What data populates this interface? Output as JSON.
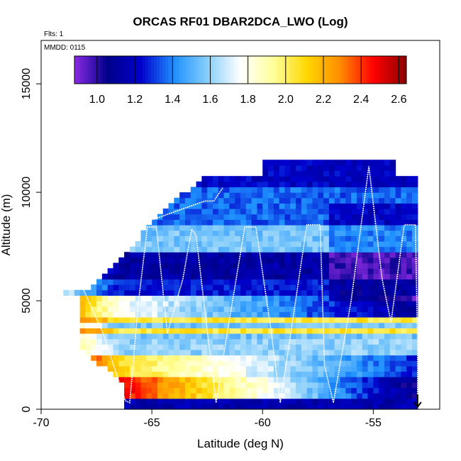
{
  "chart_data": {
    "type": "heatmap",
    "title": "ORCAS RF01 DBAR2DCA_LWO (Log)",
    "flights_note": "Flts: 1",
    "date_note": "MMDD: 0115",
    "xlabel": "Latitude (deg N)",
    "ylabel": "Altitude (m)",
    "xlim": [
      -70,
      -52
    ],
    "ylim": [
      0,
      17000
    ],
    "x_ticks": [
      -70,
      -65,
      -60,
      -55
    ],
    "x_tick_labels": [
      "-70",
      "-65",
      "-60",
      "-55"
    ],
    "y_ticks": [
      0,
      5000,
      10000,
      15000
    ],
    "y_tick_labels": [
      "0",
      "5000",
      "10000",
      "15000"
    ],
    "colorbar": {
      "range": [
        0.88,
        2.64
      ],
      "ticks": [
        1.0,
        1.2,
        1.4,
        1.6,
        1.8,
        2.0,
        2.2,
        2.4,
        2.6
      ],
      "tick_labels": [
        "1.0",
        "1.2",
        "1.4",
        "1.6",
        "1.8",
        "2.0",
        "2.2",
        "2.4",
        "2.6"
      ],
      "colors": [
        "#8a2be2",
        "#00008b",
        "#0000cd",
        "#1e90ff",
        "#87cefa",
        "#ffffff",
        "#ffff99",
        "#ffd700",
        "#ff8c00",
        "#ff0000",
        "#8b0000"
      ]
    },
    "latitude_range": [
      -69,
      -53
    ],
    "altitude_range": [
      0,
      11300
    ],
    "cell_size": {
      "lat": 0.25,
      "alt": 250
    },
    "field_description": "values log10-scaled; high values (2.2-2.6) near surface and low altitude near -69 to -66 lat; low values (1.0-1.2) at mid altitudes 6000-10500 m between -64 and -53 lat",
    "flight_track": [
      [
        -53.0,
        200
      ],
      [
        -53.0,
        3000
      ],
      [
        -53.1,
        8500
      ],
      [
        -53.6,
        8500
      ],
      [
        -54.2,
        4000
      ],
      [
        -54.6,
        6000
      ],
      [
        -55.2,
        11200
      ],
      [
        -56.0,
        5000
      ],
      [
        -56.8,
        300
      ],
      [
        -57.2,
        2000
      ],
      [
        -57.4,
        8500
      ],
      [
        -58.0,
        8500
      ],
      [
        -58.8,
        3000
      ],
      [
        -59.2,
        300
      ],
      [
        -59.6,
        3500
      ],
      [
        -60.3,
        8400
      ],
      [
        -60.8,
        8400
      ],
      [
        -61.6,
        3500
      ],
      [
        -62.1,
        300
      ],
      [
        -62.6,
        4500
      ],
      [
        -63.0,
        8000
      ],
      [
        -63.2,
        8300
      ],
      [
        -63.6,
        6000
      ],
      [
        -64.3,
        3500
      ],
      [
        -64.8,
        8400
      ],
      [
        -65.2,
        8400
      ],
      [
        -65.6,
        5000
      ],
      [
        -66.0,
        300
      ],
      [
        -66.2,
        400
      ],
      [
        -67.2,
        3500
      ],
      [
        -68.3,
        6000
      ],
      [
        -67.0,
        8000
      ],
      [
        -62.6,
        9600
      ],
      [
        -62.2,
        9600
      ],
      [
        -61.8,
        10200
      ]
    ],
    "track_end_arrow": {
      "lat": -53.0,
      "alt": 100
    }
  }
}
